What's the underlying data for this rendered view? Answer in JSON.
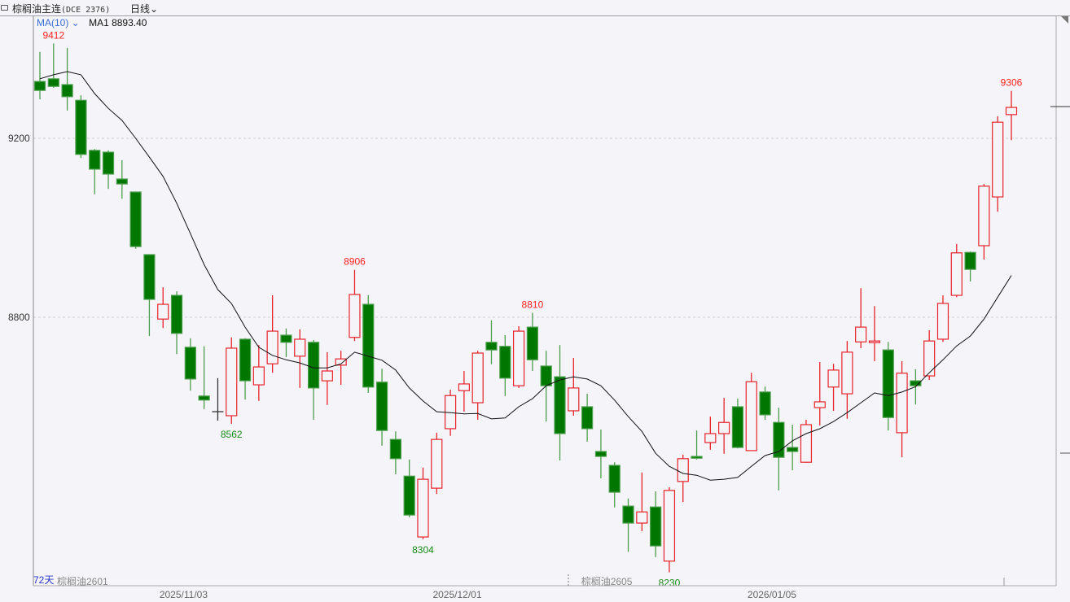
{
  "header": {
    "title": "棕榈油主连",
    "code": "(DCE  2376)",
    "period": "日线",
    "period_icon": "chevron-down-icon"
  },
  "indicator": {
    "selector": "MA(10)",
    "selector_icon": "chevron-down-icon",
    "value_label": "MA1 8893.40"
  },
  "footer": {
    "days": "72天",
    "contracts": [
      {
        "label": "棕榈油2601",
        "index": 0
      },
      {
        "label": "棕榈油2605",
        "index": 39.5
      }
    ]
  },
  "colors": {
    "background": "#f4f4f9",
    "up": "#e8232c",
    "down": "#007800",
    "ma_line": "#111111",
    "high_label": "#ff2020",
    "low_label": "#1a8a1a",
    "days_label": "#2a36c8"
  },
  "chart_data": {
    "type": "candlestick",
    "title": "",
    "xlabel": "",
    "ylabel": "",
    "ylim": [
      8200,
      9473
    ],
    "y_ticks": [
      {
        "value": 9200,
        "label": "9200"
      },
      {
        "value": 8800,
        "label": "8800"
      }
    ],
    "grid": "horizontal dashed at y ticks",
    "x_ticks": [
      {
        "index": 10.5,
        "label": "2025/11/03"
      },
      {
        "index": 30.5,
        "label": "2025/12/01"
      },
      {
        "index": 53.5,
        "label": "2026/01/05"
      }
    ],
    "candles_ohlc": [
      [
        9327,
        9393,
        9287,
        9307
      ],
      [
        9333,
        9412,
        9313,
        9316
      ],
      [
        9320,
        9402,
        9262,
        9293
      ],
      [
        9285,
        9296,
        9156,
        9164
      ],
      [
        9173,
        9176,
        9075,
        9131
      ],
      [
        9169,
        9173,
        9087,
        9120
      ],
      [
        9109,
        9151,
        9065,
        9098
      ],
      [
        9080,
        9080,
        8953,
        8958
      ],
      [
        8940,
        8940,
        8758,
        8840
      ],
      [
        8796,
        8867,
        8776,
        8829
      ],
      [
        8849,
        8858,
        8718,
        8764
      ],
      [
        8733,
        8753,
        8636,
        8662
      ],
      [
        8624,
        8735,
        8595,
        8615
      ],
      [
        8589,
        8664,
        8569,
        8589
      ],
      [
        8580,
        8755,
        8562,
        8731
      ],
      [
        8751,
        8753,
        8616,
        8658
      ],
      [
        8649,
        8738,
        8613,
        8689
      ],
      [
        8696,
        8849,
        8676,
        8769
      ],
      [
        8760,
        8775,
        8711,
        8744
      ],
      [
        8713,
        8773,
        8642,
        8751
      ],
      [
        8744,
        8749,
        8571,
        8642
      ],
      [
        8658,
        8722,
        8604,
        8680
      ],
      [
        8693,
        8725,
        8649,
        8707
      ],
      [
        8755,
        8906,
        8747,
        8851
      ],
      [
        8829,
        8849,
        8631,
        8644
      ],
      [
        8655,
        8685,
        8513,
        8547
      ],
      [
        8527,
        8545,
        8449,
        8484
      ],
      [
        8445,
        8482,
        8353,
        8358
      ],
      [
        8309,
        8464,
        8304,
        8438
      ],
      [
        8418,
        8542,
        8405,
        8527
      ],
      [
        8551,
        8638,
        8535,
        8625
      ],
      [
        8636,
        8680,
        8589,
        8651
      ],
      [
        8609,
        8725,
        8571,
        8720
      ],
      [
        8744,
        8793,
        8695,
        8727
      ],
      [
        8735,
        8760,
        8624,
        8664
      ],
      [
        8647,
        8780,
        8642,
        8769
      ],
      [
        8778,
        8810,
        8680,
        8705
      ],
      [
        8691,
        8725,
        8567,
        8647
      ],
      [
        8667,
        8738,
        8480,
        8540
      ],
      [
        8591,
        8709,
        8580,
        8642
      ],
      [
        8600,
        8629,
        8522,
        8551
      ],
      [
        8500,
        8549,
        8440,
        8489
      ],
      [
        8469,
        8476,
        8375,
        8409
      ],
      [
        8378,
        8395,
        8276,
        8340
      ],
      [
        8340,
        8453,
        8322,
        8365
      ],
      [
        8376,
        8411,
        8264,
        8289
      ],
      [
        8255,
        8420,
        8230,
        8413
      ],
      [
        8433,
        8493,
        8387,
        8484
      ],
      [
        8489,
        8547,
        8482,
        8485
      ],
      [
        8520,
        8578,
        8504,
        8540
      ],
      [
        8540,
        8620,
        8495,
        8565
      ],
      [
        8600,
        8618,
        8507,
        8509
      ],
      [
        8502,
        8676,
        8502,
        8656
      ],
      [
        8633,
        8645,
        8571,
        8582
      ],
      [
        8565,
        8598,
        8413,
        8487
      ],
      [
        8509,
        8560,
        8458,
        8500
      ],
      [
        8476,
        8571,
        8475,
        8560
      ],
      [
        8598,
        8700,
        8558,
        8611
      ],
      [
        8644,
        8696,
        8591,
        8682
      ],
      [
        8629,
        8747,
        8573,
        8722
      ],
      [
        8745,
        8865,
        8731,
        8778
      ],
      [
        8744,
        8825,
        8702,
        8747
      ],
      [
        8727,
        8745,
        8547,
        8576
      ],
      [
        8542,
        8702,
        8487,
        8675
      ],
      [
        8658,
        8684,
        8605,
        8647
      ],
      [
        8669,
        8771,
        8660,
        8747
      ],
      [
        8751,
        8849,
        8745,
        8831
      ],
      [
        8849,
        8964,
        8845,
        8944
      ],
      [
        8945,
        8947,
        8880,
        8907
      ],
      [
        8960,
        9098,
        8929,
        9093
      ],
      [
        9069,
        9249,
        9036,
        9236
      ],
      [
        9253,
        9306,
        9196,
        9269
      ]
    ],
    "ma10": [
      9333,
      9342,
      9349,
      9342,
      9300,
      9267,
      9240,
      9200,
      9158,
      9115,
      9055,
      8987,
      8918,
      8862,
      8831,
      8778,
      8733,
      8715,
      8705,
      8698,
      8687,
      8687,
      8696,
      8722,
      8713,
      8704,
      8682,
      8642,
      8613,
      8589,
      8587,
      8584,
      8585,
      8573,
      8575,
      8600,
      8618,
      8647,
      8660,
      8667,
      8662,
      8647,
      8615,
      8578,
      8545,
      8496,
      8467,
      8451,
      8447,
      8436,
      8438,
      8442,
      8467,
      8491,
      8500,
      8524,
      8540,
      8551,
      8567,
      8587,
      8609,
      8631,
      8625,
      8633,
      8645,
      8676,
      8705,
      8736,
      8758,
      8796,
      8845,
      8893.4
    ],
    "annotations": [
      {
        "index": 1,
        "kind": "high",
        "text": "9412"
      },
      {
        "index": 23,
        "kind": "high",
        "text": "8906"
      },
      {
        "index": 36,
        "kind": "high",
        "text": "8810"
      },
      {
        "index": 71,
        "kind": "high",
        "text": "9306"
      },
      {
        "index": 14,
        "kind": "low",
        "text": "8562"
      },
      {
        "index": 28,
        "kind": "low",
        "text": "8304"
      },
      {
        "index": 46,
        "kind": "low",
        "text": "8230"
      }
    ]
  }
}
